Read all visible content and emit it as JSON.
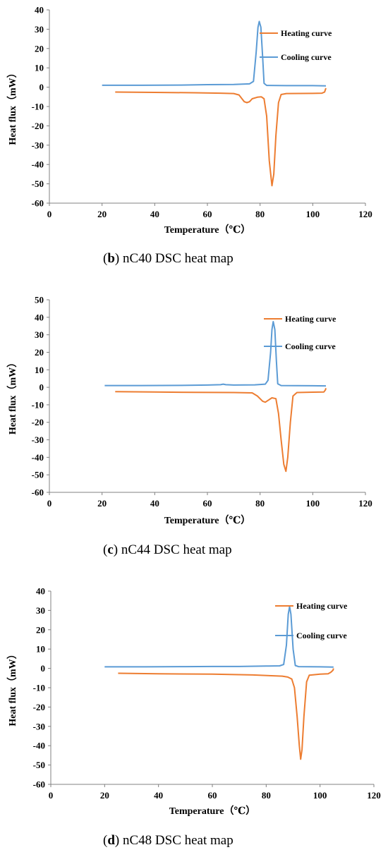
{
  "colors": {
    "heating": "#ED7D31",
    "cooling": "#5B9BD5",
    "axis": "#808080"
  },
  "chart_data": [
    {
      "type": "line",
      "caption": {
        "letter": "b",
        "text": " nC40 DSC heat map"
      },
      "xlabel": "Temperature（℃）",
      "ylabel": "Heat flux（mW）",
      "xlim": [
        0,
        120
      ],
      "ylim": [
        -60,
        40
      ],
      "xticks": [
        0,
        20,
        40,
        60,
        80,
        100,
        120
      ],
      "yticks": [
        40,
        30,
        20,
        10,
        0,
        -10,
        -20,
        -30,
        -40,
        -50,
        -60
      ],
      "grid": false,
      "legend": "top-right",
      "series": [
        {
          "name": "Heating curve",
          "points": [
            [
              25,
              -2.5
            ],
            [
              40,
              -2.7
            ],
            [
              55,
              -2.9
            ],
            [
              65,
              -3.1
            ],
            [
              70,
              -3.3
            ],
            [
              72,
              -4
            ],
            [
              74,
              -7.5
            ],
            [
              75,
              -8
            ],
            [
              76,
              -7.5
            ],
            [
              77,
              -6
            ],
            [
              79,
              -5.2
            ],
            [
              80.5,
              -5
            ],
            [
              81.5,
              -6
            ],
            [
              82.5,
              -15
            ],
            [
              83.5,
              -38
            ],
            [
              84.5,
              -51
            ],
            [
              85.2,
              -45
            ],
            [
              86,
              -25
            ],
            [
              87,
              -8
            ],
            [
              88,
              -3.8
            ],
            [
              90,
              -3.3
            ],
            [
              100,
              -3.2
            ],
            [
              103.5,
              -3.1
            ],
            [
              104.5,
              -2.5
            ],
            [
              105,
              -0.5
            ]
          ]
        },
        {
          "name": "Cooling curve",
          "points": [
            [
              20,
              1
            ],
            [
              35,
              1
            ],
            [
              50,
              1.1
            ],
            [
              60,
              1.3
            ],
            [
              70,
              1.4
            ],
            [
              76,
              1.7
            ],
            [
              77.5,
              3
            ],
            [
              78.5,
              18
            ],
            [
              79.2,
              31
            ],
            [
              79.7,
              34
            ],
            [
              80.3,
              31
            ],
            [
              81,
              15
            ],
            [
              81.5,
              2
            ],
            [
              82.5,
              0.9
            ],
            [
              90,
              0.8
            ],
            [
              100,
              0.8
            ],
            [
              105,
              0.7
            ]
          ]
        }
      ]
    },
    {
      "type": "line",
      "caption": {
        "letter": "c",
        "text": " nC44 DSC heat map"
      },
      "xlabel": "Temperature（℃）",
      "ylabel": "Heat flux（mW）",
      "xlim": [
        0,
        120
      ],
      "ylim": [
        -60,
        50
      ],
      "xticks": [
        0,
        20,
        40,
        60,
        80,
        100,
        120
      ],
      "yticks": [
        50,
        40,
        30,
        20,
        10,
        0,
        -10,
        -20,
        -30,
        -40,
        -50,
        -60
      ],
      "grid": false,
      "legend": "top-right",
      "series": [
        {
          "name": "Heating curve",
          "points": [
            [
              25,
              -2.5
            ],
            [
              40,
              -2.7
            ],
            [
              55,
              -2.9
            ],
            [
              70,
              -3
            ],
            [
              77,
              -3.2
            ],
            [
              79,
              -5
            ],
            [
              81,
              -8
            ],
            [
              82,
              -8.5
            ],
            [
              83,
              -7.5
            ],
            [
              84.5,
              -6
            ],
            [
              86,
              -6.5
            ],
            [
              87,
              -15
            ],
            [
              88,
              -30
            ],
            [
              89,
              -44
            ],
            [
              89.8,
              -48
            ],
            [
              90.5,
              -40
            ],
            [
              91.5,
              -20
            ],
            [
              92.5,
              -5
            ],
            [
              94,
              -3
            ],
            [
              100,
              -2.8
            ],
            [
              104.2,
              -2.7
            ],
            [
              104.8,
              -1.5
            ],
            [
              105,
              -0.5
            ]
          ]
        },
        {
          "name": "Cooling curve",
          "points": [
            [
              21,
              1
            ],
            [
              35,
              1
            ],
            [
              50,
              1.1
            ],
            [
              60,
              1.3
            ],
            [
              65,
              1.5
            ],
            [
              66,
              1.8
            ],
            [
              67,
              1.5
            ],
            [
              70,
              1.3
            ],
            [
              78,
              1.4
            ],
            [
              82,
              1.8
            ],
            [
              83,
              4
            ],
            [
              84,
              20
            ],
            [
              84.5,
              33
            ],
            [
              85,
              37.5
            ],
            [
              85.6,
              33
            ],
            [
              86.2,
              15
            ],
            [
              86.7,
              2
            ],
            [
              88,
              1
            ],
            [
              100,
              0.9
            ],
            [
              105,
              0.8
            ]
          ]
        }
      ]
    },
    {
      "type": "line",
      "caption": {
        "letter": "d",
        "text": " nC48 DSC heat map"
      },
      "xlabel": "Temperature（℃）",
      "ylabel": "Heat flux（mW）",
      "xlim": [
        0,
        120
      ],
      "ylim": [
        -60,
        40
      ],
      "xticks": [
        0,
        20,
        40,
        60,
        80,
        100,
        120
      ],
      "yticks": [
        40,
        30,
        20,
        10,
        0,
        -10,
        -20,
        -30,
        -40,
        -50,
        -60
      ],
      "grid": false,
      "legend": "top-right",
      "series": [
        {
          "name": "Heating curve",
          "points": [
            [
              25,
              -2.5
            ],
            [
              40,
              -2.8
            ],
            [
              60,
              -3
            ],
            [
              75,
              -3.4
            ],
            [
              82,
              -3.8
            ],
            [
              86,
              -4
            ],
            [
              88,
              -4.5
            ],
            [
              89.5,
              -5.5
            ],
            [
              90.5,
              -10
            ],
            [
              91.5,
              -25
            ],
            [
              92.3,
              -40
            ],
            [
              92.8,
              -47
            ],
            [
              93.3,
              -42
            ],
            [
              94,
              -25
            ],
            [
              95,
              -7
            ],
            [
              96,
              -3.5
            ],
            [
              100,
              -3
            ],
            [
              103,
              -2.8
            ],
            [
              104,
              -2
            ],
            [
              104.8,
              -1
            ],
            [
              105,
              0
            ]
          ]
        },
        {
          "name": "Cooling curve",
          "points": [
            [
              20,
              0.8
            ],
            [
              35,
              0.8
            ],
            [
              50,
              0.9
            ],
            [
              60,
              1
            ],
            [
              70,
              1
            ],
            [
              80,
              1.2
            ],
            [
              85,
              1.3
            ],
            [
              86.5,
              2
            ],
            [
              87.5,
              12
            ],
            [
              88.2,
              28
            ],
            [
              88.7,
              32
            ],
            [
              89.2,
              28
            ],
            [
              90,
              10
            ],
            [
              90.8,
              1.5
            ],
            [
              92,
              0.9
            ],
            [
              100,
              0.8
            ],
            [
              105,
              0.7
            ]
          ]
        }
      ]
    }
  ]
}
